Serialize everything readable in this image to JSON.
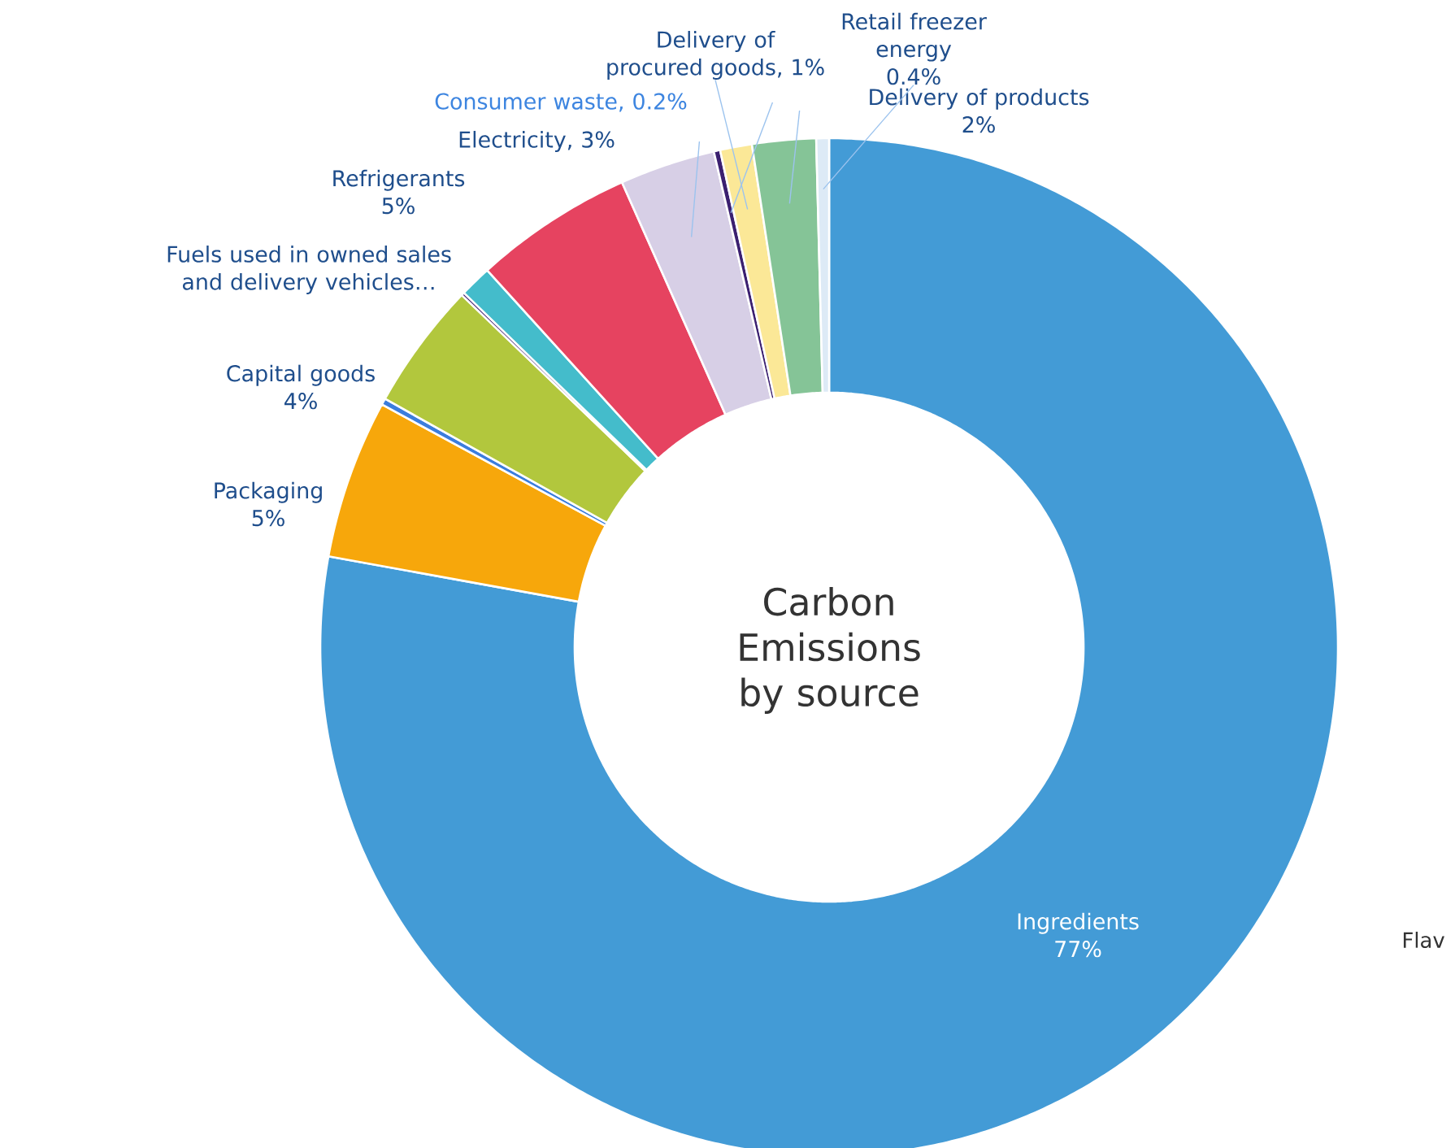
{
  "chart_data": {
    "type": "donut",
    "title": "Carbon Emissions by source",
    "categories": [
      "Ingredients",
      "Packaging",
      null,
      "Capital goods",
      null,
      "Fuels used in owned sales and delivery vehicles…",
      "Refrigerants",
      "Electricity, 3%",
      "Consumer waste, 0.2%",
      "Delivery of procured goods, 1%",
      "Delivery of products",
      "Retail freezer energy"
    ],
    "values": [
      77,
      5,
      0.2,
      4,
      0.1,
      1,
      5,
      3,
      0.2,
      1,
      2,
      0.4
    ],
    "colors": [
      "#439bd6",
      "#f7a70b",
      "#3b7ddd",
      "#b2c73d",
      "#4b2a78",
      "#44bccb",
      "#e64360",
      "#d7cfe6",
      "#3b2070",
      "#fbe897",
      "#85c497",
      "#ddeaf6"
    ],
    "value_labels": [
      "77%",
      "5%",
      null,
      "4%",
      null,
      null,
      "5%",
      null,
      null,
      null,
      "2%",
      "0.4%"
    ],
    "annotations": [
      "Flav"
    ]
  }
}
